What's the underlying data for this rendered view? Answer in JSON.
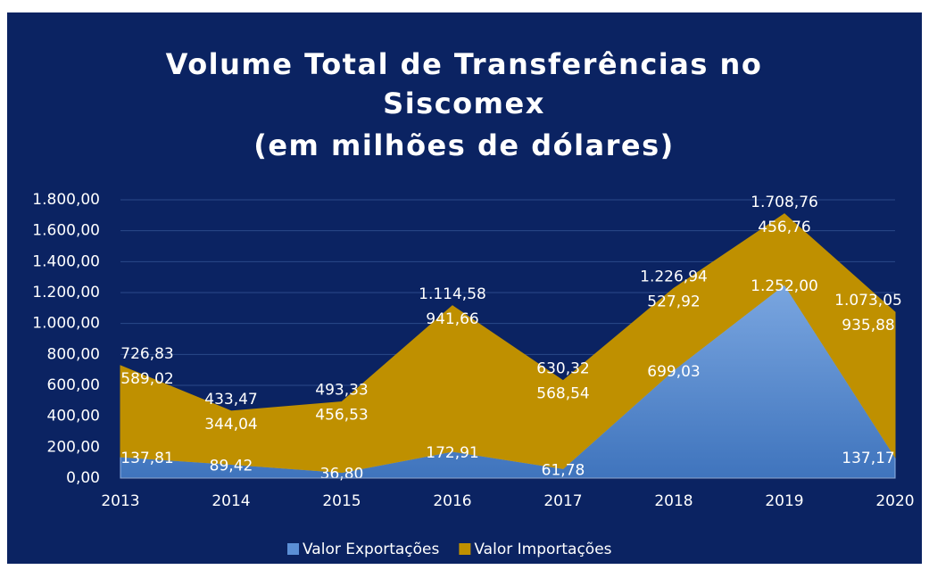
{
  "chart_data": {
    "type": "stacked_area",
    "title": [
      "Volume Total de Transferências no",
      "Siscomex",
      "(em milhões de dólares)"
    ],
    "categories": [
      "2013",
      "2014",
      "2015",
      "2016",
      "2017",
      "2018",
      "2019",
      "2020"
    ],
    "series": [
      {
        "name": "Valor Exportações",
        "color": "#5588cc",
        "values": [
          137.81,
          89.42,
          36.8,
          172.91,
          61.78,
          699.03,
          1252.0,
          137.17
        ],
        "value_labels": [
          "137,81",
          "89,42",
          "36,80",
          "172,91",
          "61,78",
          "699,03",
          "1.252,00",
          "137,17"
        ]
      },
      {
        "name": "Valor Importações",
        "color": "#bf9000",
        "values": [
          589.02,
          344.04,
          456.53,
          941.66,
          568.54,
          527.92,
          456.76,
          935.88
        ],
        "value_labels": [
          "589,02",
          "344,04",
          "456,53",
          "941,66",
          "568,54",
          "527,92",
          "456,76",
          "935,88"
        ]
      }
    ],
    "totals": {
      "values": [
        726.83,
        433.47,
        493.33,
        1114.58,
        630.32,
        1226.94,
        1708.76,
        1073.05
      ],
      "value_labels": [
        "726,83",
        "433,47",
        "493,33",
        "1.114,58",
        "630,32",
        "1.226,94",
        "1.708,76",
        "1.073,05"
      ]
    },
    "ylim": [
      0,
      1800
    ],
    "yticks": [
      {
        "value": 0,
        "label": "0,00"
      },
      {
        "value": 200,
        "label": "200,00"
      },
      {
        "value": 400,
        "label": "400,00"
      },
      {
        "value": 600,
        "label": "600,00"
      },
      {
        "value": 800,
        "label": "800,00"
      },
      {
        "value": 1000,
        "label": "1.000,00"
      },
      {
        "value": 1200,
        "label": "1.200,00"
      },
      {
        "value": 1400,
        "label": "1.400,00"
      },
      {
        "value": 1600,
        "label": "1.600,00"
      },
      {
        "value": 1800,
        "label": "1.800,00"
      }
    ],
    "grid": true,
    "legend": "bottom"
  }
}
